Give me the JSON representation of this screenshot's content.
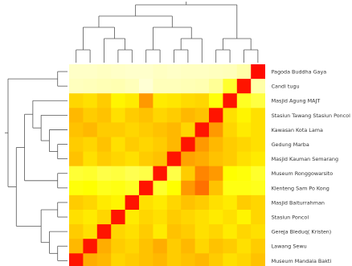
{
  "chart_data": {
    "type": "heatmap",
    "title": "",
    "xlabel": "",
    "ylabel": "",
    "rows": [
      "Pagoda Buddha Gaya",
      "Candi tugu",
      "Masjid Agung MAJT",
      "Stasiun Tawang Stasiun Poncol",
      "Kawasan Kota Lama",
      "Gedung Marba",
      "Masjid Kauman Semarang",
      "Museum Ronggowarsito",
      "Klenteng Sam Po Kong",
      "Masjid Baiturrahman",
      "Stasiun Poncol",
      "Gereja Bleduq( Kristen)",
      "Lawang Sewu",
      "Museum Mandala Bakti"
    ],
    "columns_count": 14,
    "color_scale": {
      "low": "#ff0000",
      "mid": "#ffff00",
      "high": "#ffffdd"
    },
    "values": [
      [
        0.95,
        0.95,
        0.94,
        0.95,
        0.96,
        0.96,
        0.94,
        0.95,
        0.94,
        0.94,
        0.93,
        0.92,
        0.88,
        0.02
      ],
      [
        0.93,
        0.92,
        0.91,
        0.9,
        0.92,
        0.98,
        0.92,
        0.92,
        0.91,
        0.9,
        0.84,
        0.6,
        0.04,
        0.88
      ],
      [
        0.42,
        0.44,
        0.4,
        0.48,
        0.46,
        0.3,
        0.46,
        0.45,
        0.43,
        0.42,
        0.52,
        0.04,
        0.58,
        0.65
      ],
      [
        0.36,
        0.4,
        0.38,
        0.44,
        0.4,
        0.38,
        0.42,
        0.4,
        0.36,
        0.38,
        0.04,
        0.44,
        0.48,
        0.44
      ],
      [
        0.38,
        0.36,
        0.4,
        0.4,
        0.42,
        0.4,
        0.38,
        0.36,
        0.42,
        0.04,
        0.3,
        0.42,
        0.46,
        0.44
      ],
      [
        0.4,
        0.42,
        0.38,
        0.44,
        0.4,
        0.42,
        0.4,
        0.36,
        0.04,
        0.3,
        0.36,
        0.4,
        0.42,
        0.44
      ],
      [
        0.38,
        0.44,
        0.4,
        0.42,
        0.44,
        0.4,
        0.38,
        0.04,
        0.32,
        0.34,
        0.38,
        0.4,
        0.44,
        0.46
      ],
      [
        0.62,
        0.6,
        0.66,
        0.64,
        0.68,
        0.66,
        0.04,
        0.66,
        0.4,
        0.26,
        0.3,
        0.5,
        0.52,
        0.6
      ],
      [
        0.52,
        0.5,
        0.56,
        0.54,
        0.58,
        0.04,
        0.6,
        0.5,
        0.3,
        0.22,
        0.38,
        0.54,
        0.54,
        0.56
      ],
      [
        0.4,
        0.42,
        0.46,
        0.48,
        0.04,
        0.44,
        0.46,
        0.42,
        0.38,
        0.4,
        0.44,
        0.46,
        0.4,
        0.42
      ],
      [
        0.44,
        0.46,
        0.42,
        0.04,
        0.46,
        0.42,
        0.44,
        0.4,
        0.42,
        0.44,
        0.46,
        0.44,
        0.48,
        0.42
      ],
      [
        0.4,
        0.44,
        0.04,
        0.42,
        0.44,
        0.4,
        0.46,
        0.38,
        0.4,
        0.44,
        0.42,
        0.46,
        0.42,
        0.44
      ],
      [
        0.36,
        0.04,
        0.34,
        0.4,
        0.42,
        0.38,
        0.34,
        0.4,
        0.36,
        0.42,
        0.38,
        0.4,
        0.44,
        0.4
      ],
      [
        0.04,
        0.34,
        0.36,
        0.42,
        0.4,
        0.38,
        0.36,
        0.4,
        0.38,
        0.36,
        0.4,
        0.44,
        0.42,
        0.38
      ]
    ]
  }
}
